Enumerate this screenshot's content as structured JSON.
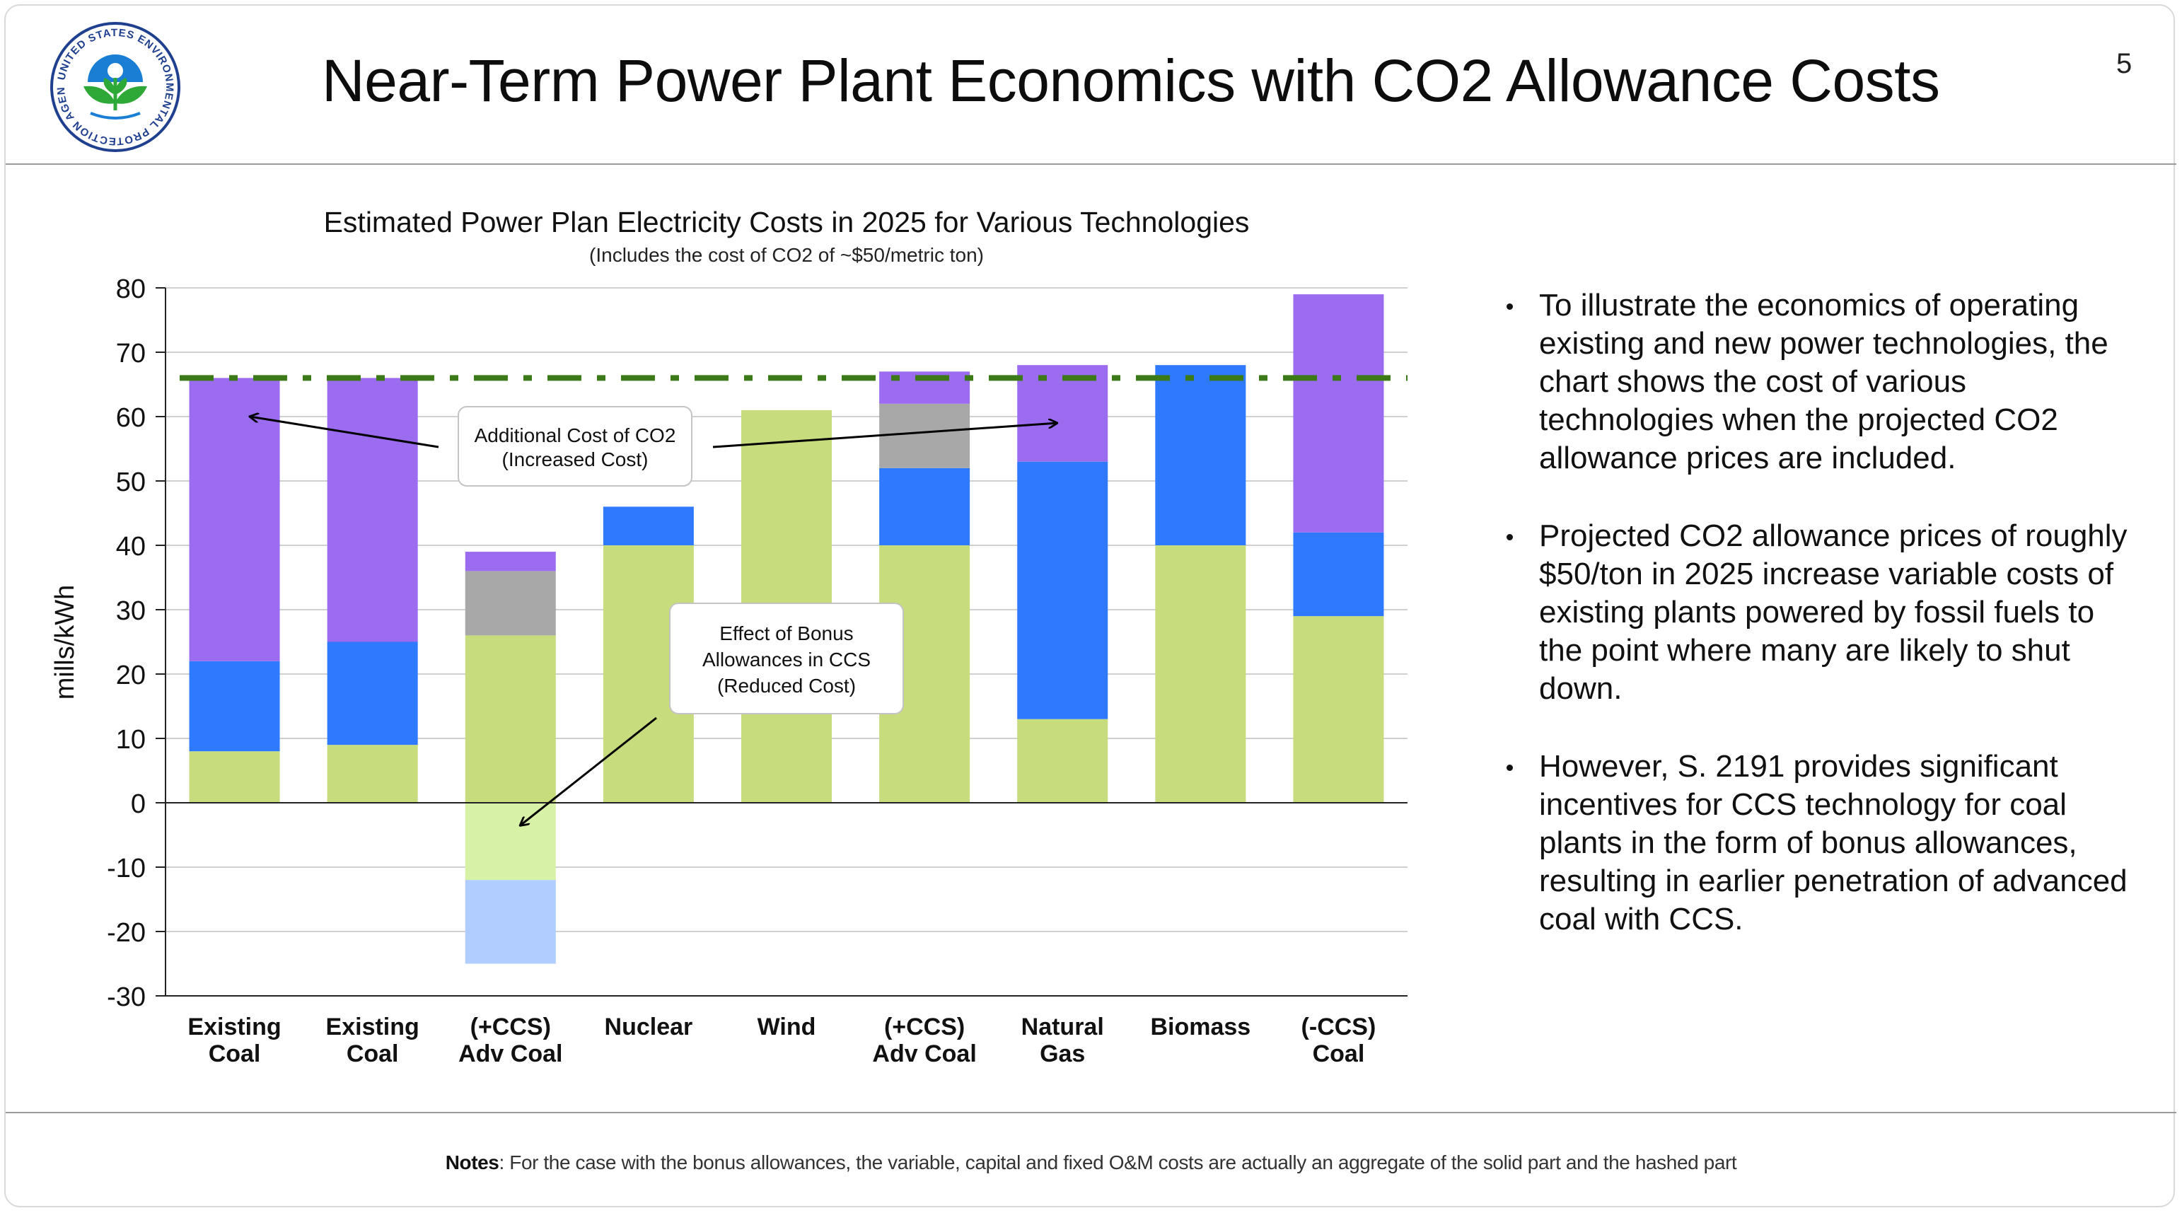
{
  "slide": {
    "title": "Near-Term Power Plant Economics with CO2 Allowance Costs",
    "page_number": "5",
    "logo_text": "UNITED STATES ENVIRONMENTAL PROTECTION AGENCY",
    "notes_label": "Notes",
    "notes_text": ": For the case with the bonus allowances, the variable, capital and fixed O&M costs are actually an aggregate of the solid part and the hashed part"
  },
  "bullets": [
    "To illustrate the economics of operating existing and new power technologies, the chart shows the cost of various technologies when the projected CO2 allowance prices are included.",
    "Projected CO2 allowance prices of roughly $50/ton in 2025 increase variable costs of existing plants powered by fossil fuels to the point where many are likely to shut down.",
    "However, S. 2191 provides significant incentives for CCS technology for coal plants in the form of bonus allowances, resulting in earlier penetration of advanced coal with CCS."
  ],
  "chart_data": {
    "type": "bar",
    "stacked": true,
    "title": "Estimated Power Plan Electricity Costs in 2025 for Various Technologies",
    "subtitle": "(Includes the cost of CO2 of ~$50/metric ton)",
    "ylabel": "mills/kWh",
    "xlabel": "",
    "ylim": [
      -30,
      80
    ],
    "yticks": [
      80,
      70,
      60,
      50,
      40,
      30,
      20,
      10,
      0,
      -10,
      -20,
      -30
    ],
    "grid": true,
    "categories": [
      [
        "Existing",
        "Coal"
      ],
      [
        "Existing",
        "Coal"
      ],
      [
        "(+CCS)",
        "Adv Coal"
      ],
      [
        "Nuclear"
      ],
      [
        "Wind"
      ],
      [
        "(+CCS)",
        "Adv Coal"
      ],
      [
        "Natural",
        "Gas"
      ],
      [
        "Biomass"
      ],
      [
        "(-CCS)",
        "Coal"
      ]
    ],
    "series": [
      {
        "name": "Green component",
        "color": "#c6dc7d",
        "values": [
          8,
          9,
          26,
          40,
          61,
          40,
          13,
          40,
          29
        ]
      },
      {
        "name": "Blue component",
        "color": "#2f79ff",
        "values": [
          14,
          16,
          0,
          6,
          0,
          12,
          40,
          28,
          13
        ]
      },
      {
        "name": "Gray component",
        "color": "#a8a8a8",
        "values": [
          0,
          0,
          10,
          0,
          0,
          10,
          0,
          0,
          0
        ]
      },
      {
        "name": "Additional cost of CO2",
        "color": "#9b6cf0",
        "values": [
          44,
          41,
          3,
          0,
          0,
          5,
          15,
          0,
          37
        ]
      }
    ],
    "negative_series": [
      {
        "name": "Bonus allowance (light green)",
        "color": "#d7f2a6",
        "values": [
          0,
          0,
          -12,
          0,
          0,
          0,
          0,
          0,
          0
        ]
      },
      {
        "name": "Bonus allowance (light blue)",
        "color": "#b1ccff",
        "values": [
          0,
          0,
          -13,
          0,
          0,
          0,
          0,
          0,
          0
        ]
      }
    ],
    "reference_line": {
      "value": 66,
      "color": "#3b7a16",
      "style": "dash-dot"
    },
    "annotations": [
      {
        "id": "co2",
        "lines": [
          "Additional Cost of CO2",
          "(Increased Cost)"
        ],
        "arrow_targets": [
          {
            "category": 0,
            "y": 60
          },
          {
            "category": 6,
            "y": 59
          }
        ]
      },
      {
        "id": "bonus",
        "lines": [
          "Effect of Bonus",
          "Allowances in CCS",
          "(Reduced Cost)"
        ],
        "arrow_targets": [
          {
            "category": 2,
            "y": -3.5
          }
        ]
      }
    ]
  }
}
